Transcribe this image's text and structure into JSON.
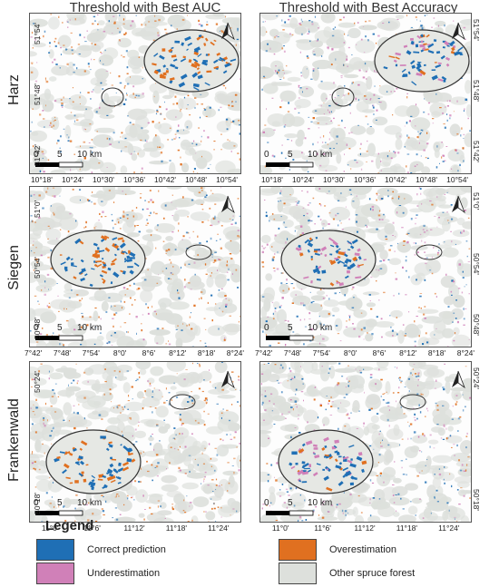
{
  "columns": [
    {
      "title": "Threshold with Best AUC"
    },
    {
      "title": "Threshold with Best Accuracy"
    }
  ],
  "rows": [
    {
      "label": "Harz",
      "xticks": [
        "10°18'",
        "10°24'",
        "10°30'",
        "10°36'",
        "10°42'",
        "10°48'",
        "10°54'"
      ],
      "yticks": [
        "51°54'",
        "51°48'",
        "51°42'"
      ]
    },
    {
      "label": "Siegen",
      "xticks": [
        "7°42'",
        "7°48'",
        "7°54'",
        "8°0'",
        "8°6'",
        "8°12'",
        "8°18'",
        "8°24'"
      ],
      "yticks": [
        "51°0'",
        "50°54'",
        "50°48'"
      ]
    },
    {
      "label": "Frankenwald",
      "xticks": [
        "11°0'",
        "11°6'",
        "11°12'",
        "11°18'",
        "11°24'"
      ],
      "yticks": [
        "50°24'",
        "50°18'"
      ]
    }
  ],
  "scale": {
    "zero": "0",
    "mid": "5",
    "end": "10 km"
  },
  "legend": {
    "title": "Legend",
    "items": [
      {
        "label": "Correct prediction",
        "color": "#1f6fb5"
      },
      {
        "label": "Overestimation",
        "color": "#e07020"
      },
      {
        "label": "Underestimation",
        "color": "#d080b8"
      },
      {
        "label": "Other spruce forest",
        "color": "#dde0dc"
      }
    ]
  }
}
